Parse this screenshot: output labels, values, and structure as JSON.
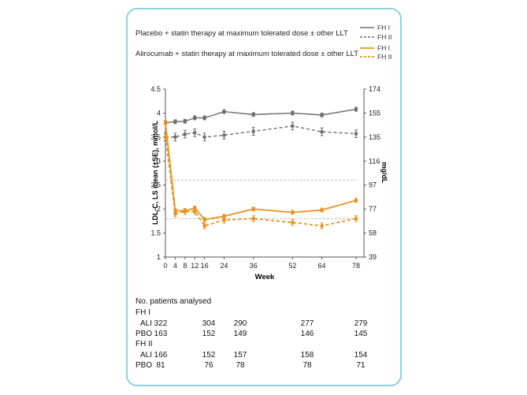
{
  "legend": {
    "placebo_label": "Placebo + statin therapy at maximum tolerated dose ± other LLT",
    "alirocumab_label": "Alirocumab + statin therapy at maximum tolerated dose ± other LLT",
    "fh1": "FH I",
    "fh2": "FH II"
  },
  "colors": {
    "placebo": "#6d6d6d",
    "alirocumab": "#e8921e",
    "reference": "#bdbdbd"
  },
  "chart_data": {
    "type": "line",
    "xlabel": "Week",
    "ylabel": "LDL-C, LS mean (±SE), mmol/L",
    "ylabel_right": "mg/dL",
    "ylim": [
      1,
      4.5
    ],
    "x_ticks": [
      0,
      4,
      8,
      12,
      16,
      24,
      36,
      52,
      64,
      78
    ],
    "y_ticks": [
      1,
      1.5,
      2,
      2.5,
      3,
      3.5,
      4,
      4.5
    ],
    "y_ticks_right": [
      39,
      58,
      77,
      97,
      116,
      135,
      155,
      174
    ],
    "reference_lines": [
      2.6,
      1.8
    ],
    "series": [
      {
        "name": "Placebo FH I",
        "group": "placebo",
        "style": "solid",
        "x": [
          0,
          4,
          8,
          12,
          16,
          24,
          36,
          52,
          64,
          78
        ],
        "y": [
          3.8,
          3.82,
          3.83,
          3.9,
          3.9,
          4.03,
          3.97,
          4.0,
          3.96,
          4.08
        ],
        "se": 0.04
      },
      {
        "name": "Placebo FH II",
        "group": "placebo",
        "style": "dashed",
        "x": [
          0,
          4,
          8,
          12,
          16,
          24,
          36,
          52,
          64,
          78
        ],
        "y": [
          3.5,
          3.5,
          3.56,
          3.59,
          3.5,
          3.54,
          3.62,
          3.73,
          3.61,
          3.57
        ],
        "se": 0.08
      },
      {
        "name": "Alirocumab FH I",
        "group": "alirocumab",
        "style": "solid",
        "x": [
          0,
          4,
          8,
          12,
          16,
          24,
          36,
          52,
          64,
          78
        ],
        "y": [
          3.8,
          1.97,
          1.96,
          2.02,
          1.78,
          1.85,
          2.0,
          1.93,
          1.98,
          2.18
        ],
        "se": 0.04
      },
      {
        "name": "Alirocumab FH II",
        "group": "alirocumab",
        "style": "dashed",
        "x": [
          0,
          4,
          8,
          12,
          16,
          24,
          36,
          52,
          64,
          78
        ],
        "y": [
          3.5,
          1.9,
          1.95,
          1.95,
          1.65,
          1.77,
          1.8,
          1.72,
          1.65,
          1.8
        ],
        "se": 0.06
      }
    ]
  },
  "table": {
    "title": "No. patients analysed",
    "groups": [
      {
        "name": "FH I",
        "rows": [
          {
            "label": "ALI",
            "values": [
              "322",
              "304",
              "290",
              "277",
              "279"
            ]
          },
          {
            "label": "PBO",
            "values": [
              "163",
              "152",
              "149",
              "146",
              "145"
            ]
          }
        ]
      },
      {
        "name": "FH II",
        "rows": [
          {
            "label": "ALI",
            "values": [
              "166",
              "152",
              "157",
              "158",
              "154"
            ]
          },
          {
            "label": "PBO",
            "values": [
              "81",
              "76",
              "78",
              "78",
              "71"
            ]
          }
        ]
      }
    ]
  }
}
